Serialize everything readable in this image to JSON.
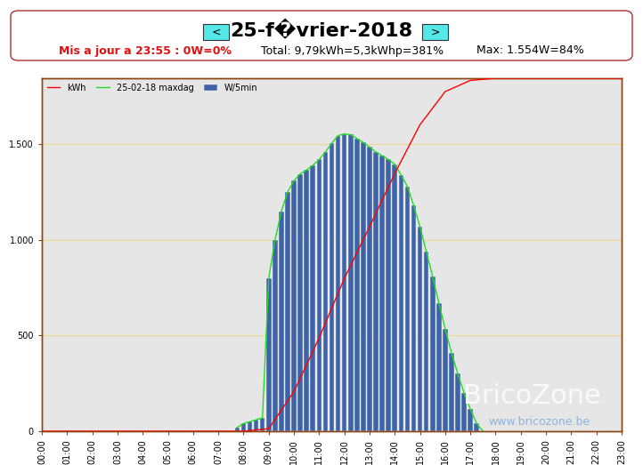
{
  "chart_data": {
    "type": "bar",
    "title": "25-f�vrier-2018",
    "subtitle": [
      "Mis a jour a 23:55 : 0W=0%",
      "Total: 9,79kWh=5,3kWhp=381%",
      "Max: 1.554W=84%"
    ],
    "annotations": [
      "<",
      ">",
      "BricoZone",
      "www.bricozone.be"
    ],
    "xlim": [
      0,
      23
    ],
    "xticks": [
      {
        "value": 0,
        "label": "00:00"
      },
      {
        "value": 1,
        "label": "01:00"
      },
      {
        "value": 2,
        "label": "02:00"
      },
      {
        "value": 3,
        "label": "03:00"
      },
      {
        "value": 4,
        "label": "04:00"
      },
      {
        "value": 5,
        "label": "05:00"
      },
      {
        "value": 6,
        "label": "06:00"
      },
      {
        "value": 7,
        "label": "07:00"
      },
      {
        "value": 8,
        "label": "08:00"
      },
      {
        "value": 9,
        "label": "09:00"
      },
      {
        "value": 10,
        "label": "10:00"
      },
      {
        "value": 11,
        "label": "11:00"
      },
      {
        "value": 12,
        "label": "12:00"
      },
      {
        "value": 13,
        "label": "13:00"
      },
      {
        "value": 14,
        "label": "14:00"
      },
      {
        "value": 15,
        "label": "15:00"
      },
      {
        "value": 16,
        "label": "16:00"
      },
      {
        "value": 17,
        "label": "17:00"
      },
      {
        "value": 18,
        "label": "18:00"
      },
      {
        "value": 19,
        "label": "19:00"
      },
      {
        "value": 20,
        "label": "20:00"
      },
      {
        "value": 21,
        "label": "21:00"
      },
      {
        "value": 22,
        "label": "22:00"
      },
      {
        "value": 23,
        "label": "23:00"
      }
    ],
    "ylim": [
      0,
      1845
    ],
    "yticks": [
      0,
      500,
      {
        "value": 1000,
        "label": "1.000"
      },
      {
        "value": 1500,
        "label": "1.500"
      }
    ],
    "y2lim": [
      0,
      9.79
    ],
    "y2ticks": [],
    "grid": true,
    "legend": "upper left",
    "series": [
      {
        "name": "kWh",
        "type": "line",
        "axis": "y2",
        "color": "#ff0000",
        "x": [
          0,
          8.0,
          9.0,
          10.0,
          11.0,
          12.0,
          13.0,
          14.0,
          15.0,
          16.0,
          17.0,
          18.0,
          23.0
        ],
        "values": [
          0,
          0,
          0.07,
          1.1,
          2.59,
          4.24,
          5.67,
          7.15,
          8.5,
          9.42,
          9.73,
          9.79,
          9.79
        ]
      },
      {
        "name": "25-02-18 maxdag",
        "type": "line",
        "color": "#22dd22",
        "x": [
          7.75,
          8.0,
          8.25,
          8.5,
          8.75,
          9.0,
          9.25,
          9.5,
          9.75,
          10.0,
          10.25,
          10.5,
          10.75,
          11.0,
          11.25,
          11.5,
          11.75,
          12.0,
          12.25,
          12.5,
          12.75,
          13.0,
          13.25,
          13.5,
          13.75,
          14.0,
          14.25,
          14.5,
          14.75,
          15.0,
          15.25,
          15.5,
          15.75,
          16.0,
          16.25,
          16.5,
          16.75,
          17.0,
          17.25,
          17.5
        ],
        "values": [
          20,
          40,
          50,
          60,
          70,
          800,
          1000,
          1150,
          1250,
          1310,
          1345,
          1365,
          1390,
          1420,
          1460,
          1505,
          1545,
          1554,
          1550,
          1530,
          1510,
          1485,
          1460,
          1440,
          1420,
          1395,
          1340,
          1280,
          1180,
          1070,
          940,
          810,
          670,
          535,
          410,
          300,
          200,
          115,
          40,
          0
        ]
      },
      {
        "name": "W/5min",
        "type": "bar",
        "color": "#3f63a8",
        "x": [
          7.75,
          8.0,
          8.25,
          8.5,
          8.75,
          9.0,
          9.25,
          9.5,
          9.75,
          10.0,
          10.25,
          10.5,
          10.75,
          11.0,
          11.25,
          11.5,
          11.75,
          12.0,
          12.25,
          12.5,
          12.75,
          13.0,
          13.25,
          13.5,
          13.75,
          14.0,
          14.25,
          14.5,
          14.75,
          15.0,
          15.25,
          15.5,
          15.75,
          16.0,
          16.25,
          16.5,
          16.75,
          17.0,
          17.25,
          17.5
        ],
        "values": [
          20,
          40,
          50,
          60,
          70,
          800,
          1000,
          1150,
          1250,
          1310,
          1345,
          1365,
          1390,
          1420,
          1460,
          1505,
          1545,
          1554,
          1550,
          1530,
          1510,
          1485,
          1460,
          1440,
          1420,
          1395,
          1340,
          1280,
          1180,
          1070,
          940,
          810,
          670,
          535,
          410,
          300,
          200,
          115,
          40,
          0
        ]
      }
    ]
  }
}
